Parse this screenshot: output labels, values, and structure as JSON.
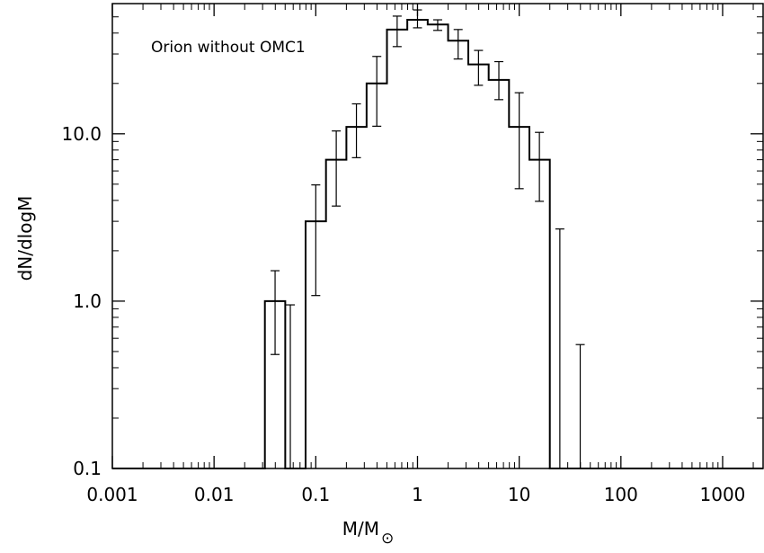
{
  "chart_data": {
    "type": "histogram",
    "annotation": "Orion without OMC1",
    "xlabel": "M/M",
    "xlabel_symbol": "⊙",
    "ylabel": "dN/dlogM",
    "x_scale": "log",
    "y_scale": "log",
    "xlim": [
      0.001,
      2500
    ],
    "ylim": [
      0.1,
      60
    ],
    "x_ticks": [
      {
        "value": 0.001,
        "label": "0.001"
      },
      {
        "value": 0.01,
        "label": "0.01"
      },
      {
        "value": 0.1,
        "label": "0.1"
      },
      {
        "value": 1,
        "label": "1"
      },
      {
        "value": 10,
        "label": "10"
      },
      {
        "value": 100,
        "label": "100"
      },
      {
        "value": 1000,
        "label": "1000"
      }
    ],
    "y_ticks": [
      {
        "value": 0.1,
        "label": "0.1"
      },
      {
        "value": 1,
        "label": "1.0"
      },
      {
        "value": 10,
        "label": "10.0"
      }
    ],
    "grid": false,
    "bins": [
      {
        "lo": 0.001,
        "hi": 0.0316,
        "value": 0.1
      },
      {
        "lo": 0.0316,
        "hi": 0.0501,
        "value": 1.0
      },
      {
        "lo": 0.0501,
        "hi": 0.0631,
        "value": 0.1
      },
      {
        "lo": 0.0631,
        "hi": 0.0794,
        "value": 0.1
      },
      {
        "lo": 0.0794,
        "hi": 0.126,
        "value": 3.0
      },
      {
        "lo": 0.126,
        "hi": 0.2,
        "value": 7.0
      },
      {
        "lo": 0.2,
        "hi": 0.316,
        "value": 11.0
      },
      {
        "lo": 0.316,
        "hi": 0.501,
        "value": 20.0
      },
      {
        "lo": 0.501,
        "hi": 0.794,
        "value": 42.0
      },
      {
        "lo": 0.794,
        "hi": 1.26,
        "value": 48.0
      },
      {
        "lo": 1.26,
        "hi": 2.0,
        "value": 45.0
      },
      {
        "lo": 2.0,
        "hi": 3.16,
        "value": 36.0
      },
      {
        "lo": 3.16,
        "hi": 5.01,
        "value": 26.0
      },
      {
        "lo": 5.01,
        "hi": 7.94,
        "value": 21.0
      },
      {
        "lo": 7.94,
        "hi": 12.6,
        "value": 11.0
      },
      {
        "lo": 12.6,
        "hi": 20.0,
        "value": 7.0
      },
      {
        "lo": 20.0,
        "hi": 25.1,
        "value": 0.1
      },
      {
        "lo": 25.1,
        "hi": 2500,
        "value": 0.1
      }
    ],
    "error_bars": [
      {
        "x": 0.0398,
        "low": 0.48,
        "high": 1.52
      },
      {
        "x": 0.0562,
        "low": 0.1,
        "high": 0.95
      },
      {
        "x": 0.1,
        "low": 1.08,
        "high": 4.95
      },
      {
        "x": 0.159,
        "low": 3.7,
        "high": 10.4
      },
      {
        "x": 0.251,
        "low": 7.2,
        "high": 15.1
      },
      {
        "x": 0.398,
        "low": 11.1,
        "high": 29.0
      },
      {
        "x": 0.631,
        "low": 33.2,
        "high": 50.5
      },
      {
        "x": 1.0,
        "low": 43.0,
        "high": 55.0
      },
      {
        "x": 1.58,
        "low": 41.5,
        "high": 48.0
      },
      {
        "x": 2.51,
        "low": 28.0,
        "high": 42.0
      },
      {
        "x": 3.98,
        "low": 19.5,
        "high": 31.5
      },
      {
        "x": 6.31,
        "low": 16.0,
        "high": 27.0
      },
      {
        "x": 10.0,
        "low": 4.7,
        "high": 17.6
      },
      {
        "x": 15.8,
        "low": 3.95,
        "high": 10.2
      },
      {
        "x": 25.1,
        "low": 0.1,
        "high": 2.7
      },
      {
        "x": 39.8,
        "low": 0.1,
        "high": 0.55
      }
    ]
  }
}
